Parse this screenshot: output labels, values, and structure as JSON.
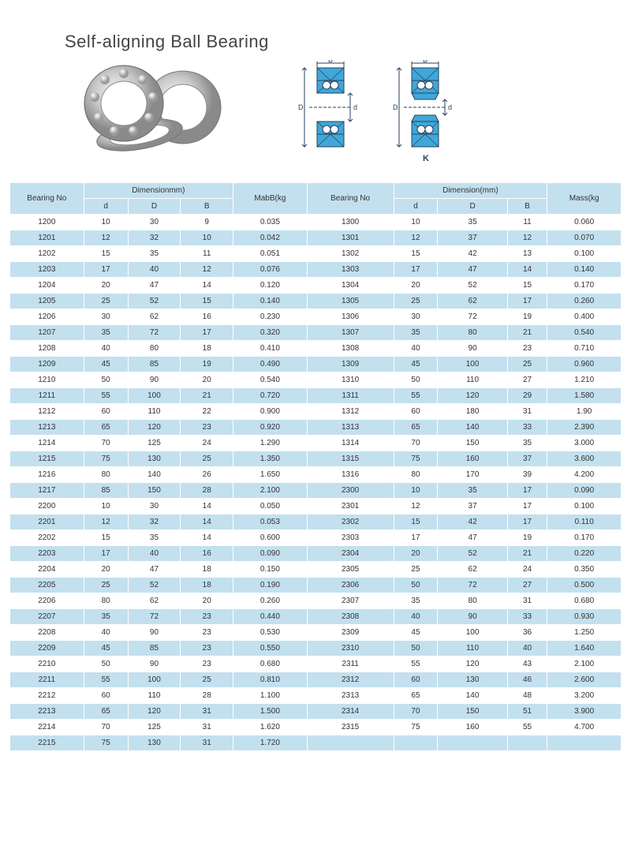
{
  "title": "Self-aligning Ball Bearing",
  "colors": {
    "header_bg": "#c3e0ef",
    "row_even_bg": "#c3e0ef",
    "row_odd_bg": "#ffffff",
    "border": "#ffffff",
    "text": "#333333",
    "diagram_fill": "#3fa8d8",
    "diagram_stroke": "#2a3f5f"
  },
  "table": {
    "header1": {
      "bearing_no": "Bearing No",
      "dimension_left": "Dimensionmm)",
      "mass_left": "MabB(kg",
      "bearing_no2": "Bearing No",
      "dimension_right": "Dimension(mm)",
      "mass_right": "Mass(kg"
    },
    "header2": {
      "d_l": "d",
      "D_l": "D",
      "B_l": "B",
      "d_r": "d",
      "D_r": "D",
      "B_r": "B"
    },
    "rows": [
      {
        "bn1": "1200",
        "d1": "10",
        "D1": "30",
        "B1": "9",
        "m1": "0.035",
        "bn2": "1300",
        "d2": "10",
        "D2": "35",
        "B2": "11",
        "m2": "0.060"
      },
      {
        "bn1": "1201",
        "d1": "12",
        "D1": "32",
        "B1": "10",
        "m1": "0.042",
        "bn2": "1301",
        "d2": "12",
        "D2": "37",
        "B2": "12",
        "m2": "0.070"
      },
      {
        "bn1": "1202",
        "d1": "15",
        "D1": "35",
        "B1": "11",
        "m1": "0.051",
        "bn2": "1302",
        "d2": "15",
        "D2": "42",
        "B2": "13",
        "m2": "0.100"
      },
      {
        "bn1": "1203",
        "d1": "17",
        "D1": "40",
        "B1": "12",
        "m1": "0.076",
        "bn2": "1303",
        "d2": "17",
        "D2": "47",
        "B2": "14",
        "m2": "0.140"
      },
      {
        "bn1": "1204",
        "d1": "20",
        "D1": "47",
        "B1": "14",
        "m1": "0.120",
        "bn2": "1304",
        "d2": "20",
        "D2": "52",
        "B2": "15",
        "m2": "0.170"
      },
      {
        "bn1": "1205",
        "d1": "25",
        "D1": "52",
        "B1": "15",
        "m1": "0.140",
        "bn2": "1305",
        "d2": "25",
        "D2": "62",
        "B2": "17",
        "m2": "0.260"
      },
      {
        "bn1": "1206",
        "d1": "30",
        "D1": "62",
        "B1": "16",
        "m1": "0.230",
        "bn2": "1306",
        "d2": "30",
        "D2": "72",
        "B2": "19",
        "m2": "0.400"
      },
      {
        "bn1": "1207",
        "d1": "35",
        "D1": "72",
        "B1": "17",
        "m1": "0.320",
        "bn2": "1307",
        "d2": "35",
        "D2": "80",
        "B2": "21",
        "m2": "0.540"
      },
      {
        "bn1": "1208",
        "d1": "40",
        "D1": "80",
        "B1": "18",
        "m1": "0.410",
        "bn2": "1308",
        "d2": "40",
        "D2": "90",
        "B2": "23",
        "m2": "0.710"
      },
      {
        "bn1": "1209",
        "d1": "45",
        "D1": "85",
        "B1": "19",
        "m1": "0.490",
        "bn2": "1309",
        "d2": "45",
        "D2": "100",
        "B2": "25",
        "m2": "0.960"
      },
      {
        "bn1": "1210",
        "d1": "50",
        "D1": "90",
        "B1": "20",
        "m1": "0.540",
        "bn2": "1310",
        "d2": "50",
        "D2": "110",
        "B2": "27",
        "m2": "1.210"
      },
      {
        "bn1": "1211",
        "d1": "55",
        "D1": "100",
        "B1": "21",
        "m1": "0.720",
        "bn2": "1311",
        "d2": "55",
        "D2": "120",
        "B2": "29",
        "m2": "1.580"
      },
      {
        "bn1": "1212",
        "d1": "60",
        "D1": "110",
        "B1": "22",
        "m1": "0.900",
        "bn2": "1312",
        "d2": "60",
        "D2": "180",
        "B2": "31",
        "m2": "1.90"
      },
      {
        "bn1": "1213",
        "d1": "65",
        "D1": "120",
        "B1": "23",
        "m1": "0.920",
        "bn2": "1313",
        "d2": "65",
        "D2": "140",
        "B2": "33",
        "m2": "2.390"
      },
      {
        "bn1": "1214",
        "d1": "70",
        "D1": "125",
        "B1": "24",
        "m1": "1.290",
        "bn2": "1314",
        "d2": "70",
        "D2": "150",
        "B2": "35",
        "m2": "3.000"
      },
      {
        "bn1": "1215",
        "d1": "75",
        "D1": "130",
        "B1": "25",
        "m1": "1.350",
        "bn2": "1315",
        "d2": "75",
        "D2": "160",
        "B2": "37",
        "m2": "3.600"
      },
      {
        "bn1": "1216",
        "d1": "80",
        "D1": "140",
        "B1": "26",
        "m1": "1.650",
        "bn2": "1316",
        "d2": "80",
        "D2": "170",
        "B2": "39",
        "m2": "4.200"
      },
      {
        "bn1": "1217",
        "d1": "85",
        "D1": "150",
        "B1": "28",
        "m1": "2.100",
        "bn2": "2300",
        "d2": "10",
        "D2": "35",
        "B2": "17",
        "m2": "0.090"
      },
      {
        "bn1": "2200",
        "d1": "10",
        "D1": "30",
        "B1": "14",
        "m1": "0.050",
        "bn2": "2301",
        "d2": "12",
        "D2": "37",
        "B2": "17",
        "m2": "0.100"
      },
      {
        "bn1": "2201",
        "d1": "12",
        "D1": "32",
        "B1": "14",
        "m1": "0.053",
        "bn2": "2302",
        "d2": "15",
        "D2": "42",
        "B2": "17",
        "m2": "0.110"
      },
      {
        "bn1": "2202",
        "d1": "15",
        "D1": "35",
        "B1": "14",
        "m1": "0.600",
        "bn2": "2303",
        "d2": "17",
        "D2": "47",
        "B2": "19",
        "m2": "0.170"
      },
      {
        "bn1": "2203",
        "d1": "17",
        "D1": "40",
        "B1": "16",
        "m1": "0.090",
        "bn2": "2304",
        "d2": "20",
        "D2": "52",
        "B2": "21",
        "m2": "0.220"
      },
      {
        "bn1": "2204",
        "d1": "20",
        "D1": "47",
        "B1": "18",
        "m1": "0.150",
        "bn2": "2305",
        "d2": "25",
        "D2": "62",
        "B2": "24",
        "m2": "0.350"
      },
      {
        "bn1": "2205",
        "d1": "25",
        "D1": "52",
        "B1": "18",
        "m1": "0.190",
        "bn2": "2306",
        "d2": "50",
        "D2": "72",
        "B2": "27",
        "m2": "0.500"
      },
      {
        "bn1": "2206",
        "d1": "80",
        "D1": "62",
        "B1": "20",
        "m1": "0.260",
        "bn2": "2307",
        "d2": "35",
        "D2": "80",
        "B2": "31",
        "m2": "0.680"
      },
      {
        "bn1": "2207",
        "d1": "35",
        "D1": "72",
        "B1": "23",
        "m1": "0.440",
        "bn2": "2308",
        "d2": "40",
        "D2": "90",
        "B2": "33",
        "m2": "0.930"
      },
      {
        "bn1": "2208",
        "d1": "40",
        "D1": "90",
        "B1": "23",
        "m1": "0.530",
        "bn2": "2309",
        "d2": "45",
        "D2": "100",
        "B2": "36",
        "m2": "1.250"
      },
      {
        "bn1": "2209",
        "d1": "45",
        "D1": "85",
        "B1": "23",
        "m1": "0.550",
        "bn2": "2310",
        "d2": "50",
        "D2": "110",
        "B2": "40",
        "m2": "1.640"
      },
      {
        "bn1": "2210",
        "d1": "50",
        "D1": "90",
        "B1": "23",
        "m1": "0.680",
        "bn2": "2311",
        "d2": "55",
        "D2": "120",
        "B2": "43",
        "m2": "2.100"
      },
      {
        "bn1": "2211",
        "d1": "55",
        "D1": "100",
        "B1": "25",
        "m1": "0.810",
        "bn2": "2312",
        "d2": "60",
        "D2": "130",
        "B2": "46",
        "m2": "2.600"
      },
      {
        "bn1": "2212",
        "d1": "60",
        "D1": "110",
        "B1": "28",
        "m1": "1.100",
        "bn2": "2313",
        "d2": "65",
        "D2": "140",
        "B2": "48",
        "m2": "3.200"
      },
      {
        "bn1": "2213",
        "d1": "65",
        "D1": "120",
        "B1": "31",
        "m1": "1.500",
        "bn2": "2314",
        "d2": "70",
        "D2": "150",
        "B2": "51",
        "m2": "3.900"
      },
      {
        "bn1": "2214",
        "d1": "70",
        "D1": "125",
        "B1": "31",
        "m1": "1.620",
        "bn2": "2315",
        "d2": "75",
        "D2": "160",
        "B2": "55",
        "m2": "4.700"
      },
      {
        "bn1": "2215",
        "d1": "75",
        "D1": "130",
        "B1": "31",
        "m1": "1.720",
        "bn2": "",
        "d2": "",
        "D2": "",
        "B2": "",
        "m2": ""
      }
    ]
  },
  "diagram_labels": {
    "B": "B",
    "D": "D",
    "d": "d",
    "K": "K"
  }
}
